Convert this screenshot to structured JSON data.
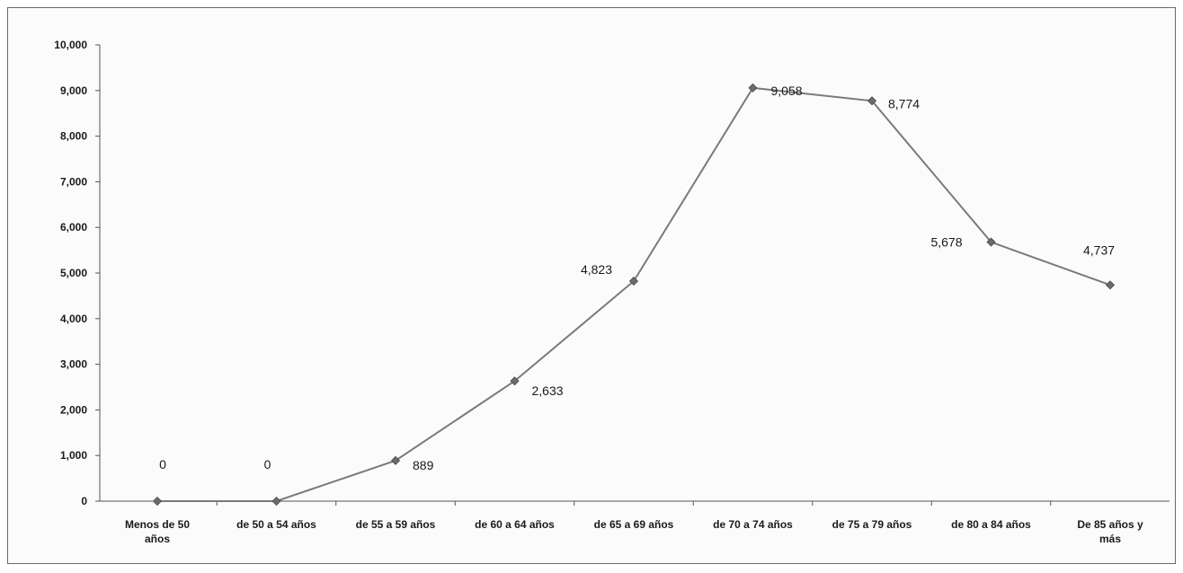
{
  "chart_data": {
    "type": "line",
    "title": "",
    "xlabel": "",
    "ylabel": "",
    "categories": [
      [
        "Menos de 50",
        "años"
      ],
      [
        "de 50 a 54 años"
      ],
      [
        "de 55 a 59 años"
      ],
      [
        "de 60 a 64 años"
      ],
      [
        "de 65 a 69 años"
      ],
      [
        "de 70 a 74 años"
      ],
      [
        "de 75 a 79 años"
      ],
      [
        "de 80 a 84 años"
      ],
      [
        "De 85 años y",
        "más"
      ]
    ],
    "values": [
      0,
      0,
      889,
      2633,
      4823,
      9058,
      8774,
      5678,
      4737
    ],
    "data_labels": [
      "0",
      "0",
      "889",
      "2,633",
      "4,823",
      "9,058",
      "8,774",
      "5,678",
      "4,737"
    ],
    "ylim": [
      0,
      10000
    ],
    "yticks": [
      0,
      1000,
      2000,
      3000,
      4000,
      5000,
      6000,
      7000,
      8000,
      9000,
      10000
    ],
    "ytick_labels": [
      "0",
      "1,000",
      "2,000",
      "3,000",
      "4,000",
      "5,000",
      "6,000",
      "7,000",
      "8,000",
      "9,000",
      "10,000"
    ],
    "grid": false,
    "legend": "none",
    "colors": {
      "line": "#7a7a7a",
      "marker": "#6b6b6b",
      "axis": "#555555",
      "text": "#1a1a1a"
    }
  }
}
